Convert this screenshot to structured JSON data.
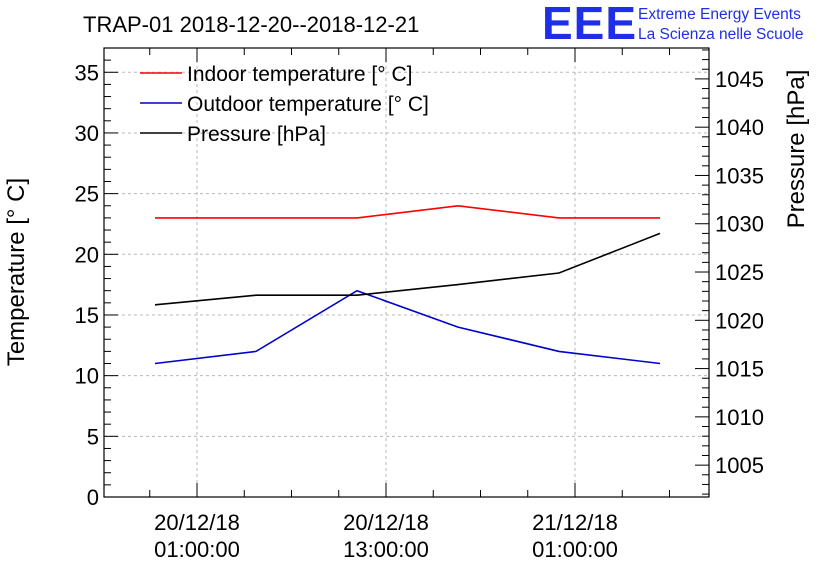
{
  "chart_data": {
    "type": "line",
    "title": "TRAP-01 2018-12-20--2018-12-21",
    "ylabel": "Temperature [° C]",
    "ylabel_right": "Pressure [hPa]",
    "ylim": [
      0,
      37
    ],
    "ylim_right": [
      1001.7,
      1048.2
    ],
    "y_ticks": [
      "0",
      "5",
      "10",
      "15",
      "20",
      "25",
      "30",
      "35"
    ],
    "y_right_ticks": [
      "1005",
      "1010",
      "1015",
      "1020",
      "1025",
      "1030",
      "1035",
      "1040",
      "1045"
    ],
    "x_ticks": [
      {
        "date": "20/12/18",
        "time": "01:00:00"
      },
      {
        "date": "20/12/18",
        "time": "13:00:00"
      },
      {
        "date": "21/12/18",
        "time": "01:00:00"
      }
    ],
    "grid": true,
    "legend_position": "top-left",
    "series": [
      {
        "name": "Indoor temperature [° C]",
        "axis": "left",
        "color": "#ff0000",
        "x": [
          0.0,
          0.2,
          0.4,
          0.6,
          0.8,
          1.0
        ],
        "values": [
          23,
          23,
          23,
          24,
          23,
          23
        ]
      },
      {
        "name": "Outdoor temperature [° C]",
        "axis": "left",
        "color": "#0000cc",
        "x": [
          0.0,
          0.2,
          0.4,
          0.6,
          0.8,
          1.0
        ],
        "values": [
          11,
          12,
          17,
          14,
          12,
          11
        ]
      },
      {
        "name": "Pressure [hPa]",
        "axis": "right",
        "color": "#000000",
        "x": [
          0.0,
          0.2,
          0.4,
          0.6,
          0.8,
          1.0
        ],
        "values": [
          1021.6,
          1022.6,
          1022.6,
          1023.7,
          1024.9,
          1029.0
        ]
      }
    ]
  },
  "logo": {
    "mark": "EEE",
    "line1": "Extreme Energy Events",
    "line2": "La Scienza nelle Scuole"
  }
}
